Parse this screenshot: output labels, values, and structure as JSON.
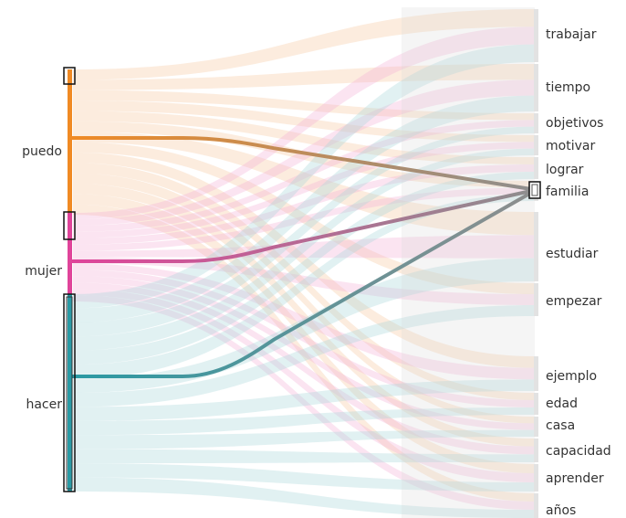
{
  "chart_data": {
    "type": "sankey",
    "sources": [
      {
        "id": "puedo",
        "label": "puedo",
        "color": "#f08a24"
      },
      {
        "id": "mujer",
        "label": "mujer",
        "color": "#e0449a"
      },
      {
        "id": "hacer",
        "label": "hacer",
        "color": "#2a9aa4"
      }
    ],
    "targets": [
      {
        "id": "trabajar",
        "label": "trabajar"
      },
      {
        "id": "tiempo",
        "label": "tiempo"
      },
      {
        "id": "objetivos",
        "label": "objetivos"
      },
      {
        "id": "motivar",
        "label": "motivar"
      },
      {
        "id": "lograr",
        "label": "lograr"
      },
      {
        "id": "familia",
        "label": "familia"
      },
      {
        "id": "estudiar",
        "label": "estudiar"
      },
      {
        "id": "empezar",
        "label": "empezar"
      },
      {
        "id": "ejemplo",
        "label": "ejemplo"
      },
      {
        "id": "edad",
        "label": "edad"
      },
      {
        "id": "casa",
        "label": "casa"
      },
      {
        "id": "capacidad",
        "label": "capacidad"
      },
      {
        "id": "aprender",
        "label": "aprender"
      },
      {
        "id": "años",
        "label": "años"
      }
    ],
    "highlighted_target": "familia",
    "link_colors": {
      "puedo": "#f7c9a0",
      "mujer": "#f3b2d6",
      "hacer": "#a9d8db",
      "neutral": "#d9d9d9"
    }
  }
}
